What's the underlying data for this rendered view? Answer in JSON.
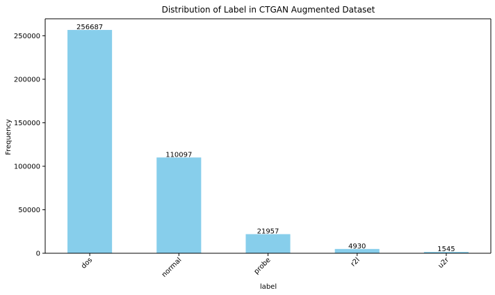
{
  "chart_data": {
    "type": "bar",
    "title": "Distribution of Label in CTGAN Augmented Dataset",
    "xlabel": "label",
    "ylabel": "Frequency",
    "categories": [
      "dos",
      "normal",
      "probe",
      "r2l",
      "u2r"
    ],
    "values": [
      256687,
      110097,
      21957,
      4930,
      1545
    ],
    "ylim": [
      0,
      269521
    ],
    "yticks": [
      0,
      50000,
      100000,
      150000,
      200000,
      250000
    ],
    "ytick_labels": [
      "0",
      "50000",
      "100000",
      "150000",
      "200000",
      "250000"
    ],
    "data_labels": [
      "256687",
      "110097",
      "21957",
      "4930",
      "1545"
    ],
    "grid": false,
    "legend": "none",
    "xtick_rotation_deg": 45,
    "colors": {
      "bar": "#87ceeb",
      "axis": "#000000",
      "background": "#ffffff"
    }
  }
}
